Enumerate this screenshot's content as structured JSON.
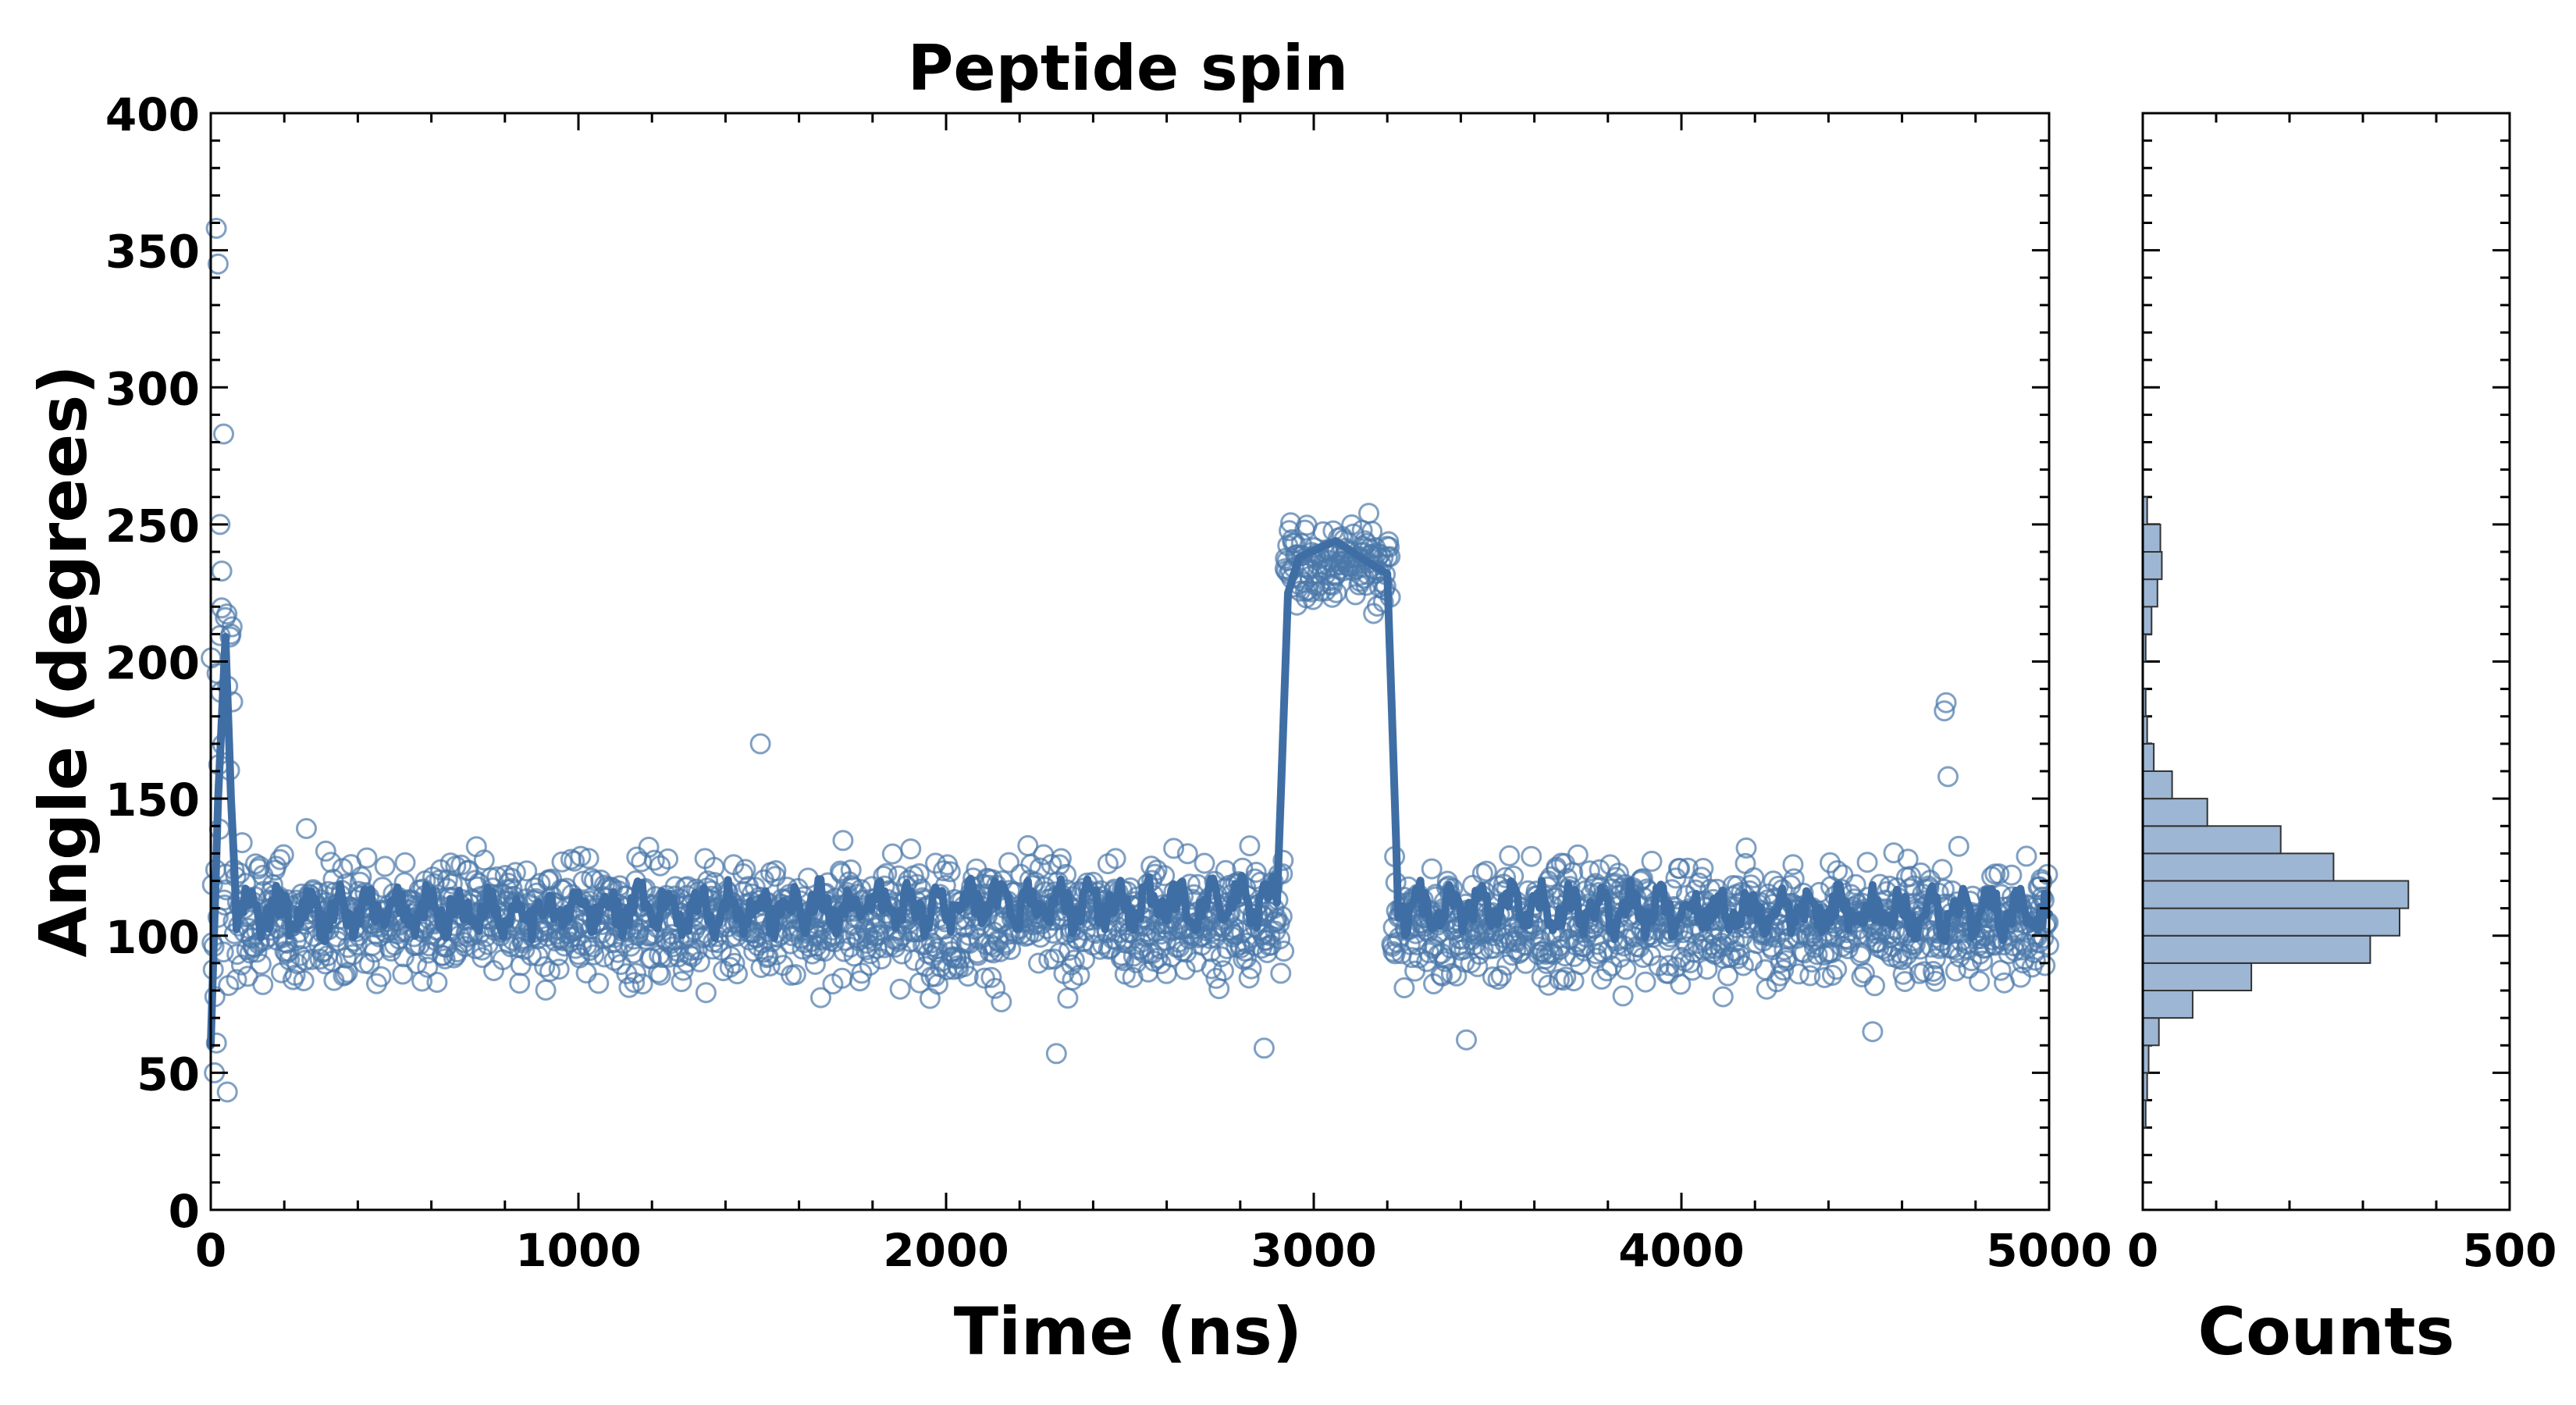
{
  "chart_data": [
    {
      "type": "scatter",
      "title": "Peptide spin",
      "xlabel": "Time (ns)",
      "ylabel": "Angle (degrees)",
      "xlim": [
        0,
        5000
      ],
      "ylim": [
        0,
        400
      ],
      "xticks": [
        "0",
        "1000",
        "2000",
        "3000",
        "4000",
        "5000"
      ],
      "yticks": [
        "0",
        "50",
        "100",
        "150",
        "200",
        "250",
        "300",
        "350",
        "400"
      ],
      "marker_color": "#4a78aa",
      "line_color": "#3f6ea5",
      "series": [
        {
          "name": "Angle samples (open circles)",
          "description_values": "Baseline ~105 ± 20 deg from 0–2920 ns and 3220–5000 ns; elevated state ~235 ± 12 deg from 2920–3210 ns; initial transient up to ~360 deg near 0–60 ns",
          "segments": [
            {
              "t_start": 0,
              "t_end": 60,
              "mean": 160,
              "spread": 90
            },
            {
              "t_start": 60,
              "t_end": 2920,
              "mean": 106,
              "spread": 18
            },
            {
              "t_start": 2920,
              "t_end": 3210,
              "mean": 236,
              "spread": 12
            },
            {
              "t_start": 3210,
              "t_end": 5000,
              "mean": 105,
              "spread": 18
            }
          ],
          "outliers": [
            [
              15,
              358
            ],
            [
              20,
              345
            ],
            [
              35,
              283
            ],
            [
              25,
              250
            ],
            [
              30,
              233
            ],
            [
              40,
              216
            ],
            [
              10,
              50
            ],
            [
              45,
              43
            ],
            [
              1495,
              170
            ],
            [
              4720,
              185
            ],
            [
              4715,
              182
            ],
            [
              4725,
              158
            ],
            [
              3415,
              62
            ],
            [
              2865,
              59
            ],
            [
              2300,
              57
            ],
            [
              4520,
              65
            ]
          ]
        },
        {
          "name": "Running average (line)",
          "description_values": "Smoothed trace ~108 deg baseline, spike to ~209 deg at ~40 ns, plateau ~235–245 deg between 2930 and 3200 ns",
          "points": [
            [
              0,
              60
            ],
            [
              20,
              150
            ],
            [
              40,
              209
            ],
            [
              55,
              150
            ],
            [
              70,
              108
            ],
            [
              2900,
              112
            ],
            [
              2930,
              225
            ],
            [
              2960,
              238
            ],
            [
              3060,
              244
            ],
            [
              3150,
              236
            ],
            [
              3200,
              232
            ],
            [
              3230,
              110
            ],
            [
              5000,
              108
            ]
          ]
        }
      ]
    },
    {
      "type": "bar",
      "orientation": "horizontal",
      "title": "",
      "xlabel": "Counts",
      "ylabel": "",
      "xlim": [
        0,
        500
      ],
      "ylim": [
        0,
        400
      ],
      "xticks": [
        "0",
        "500"
      ],
      "bar_color": "#9db6d4",
      "bin_width": 10,
      "bins": [
        {
          "lo": 30,
          "hi": 40,
          "count": 4
        },
        {
          "lo": 40,
          "hi": 50,
          "count": 6
        },
        {
          "lo": 50,
          "hi": 60,
          "count": 8
        },
        {
          "lo": 60,
          "hi": 70,
          "count": 22
        },
        {
          "lo": 70,
          "hi": 80,
          "count": 68
        },
        {
          "lo": 80,
          "hi": 90,
          "count": 148
        },
        {
          "lo": 90,
          "hi": 100,
          "count": 310
        },
        {
          "lo": 100,
          "hi": 110,
          "count": 350
        },
        {
          "lo": 110,
          "hi": 120,
          "count": 362
        },
        {
          "lo": 120,
          "hi": 130,
          "count": 260
        },
        {
          "lo": 130,
          "hi": 140,
          "count": 188
        },
        {
          "lo": 140,
          "hi": 150,
          "count": 88
        },
        {
          "lo": 150,
          "hi": 160,
          "count": 40
        },
        {
          "lo": 160,
          "hi": 170,
          "count": 15
        },
        {
          "lo": 170,
          "hi": 180,
          "count": 6
        },
        {
          "lo": 180,
          "hi": 190,
          "count": 4
        },
        {
          "lo": 200,
          "hi": 210,
          "count": 4
        },
        {
          "lo": 210,
          "hi": 220,
          "count": 12
        },
        {
          "lo": 220,
          "hi": 230,
          "count": 20
        },
        {
          "lo": 230,
          "hi": 240,
          "count": 26
        },
        {
          "lo": 240,
          "hi": 250,
          "count": 24
        },
        {
          "lo": 250,
          "hi": 260,
          "count": 6
        }
      ]
    }
  ]
}
